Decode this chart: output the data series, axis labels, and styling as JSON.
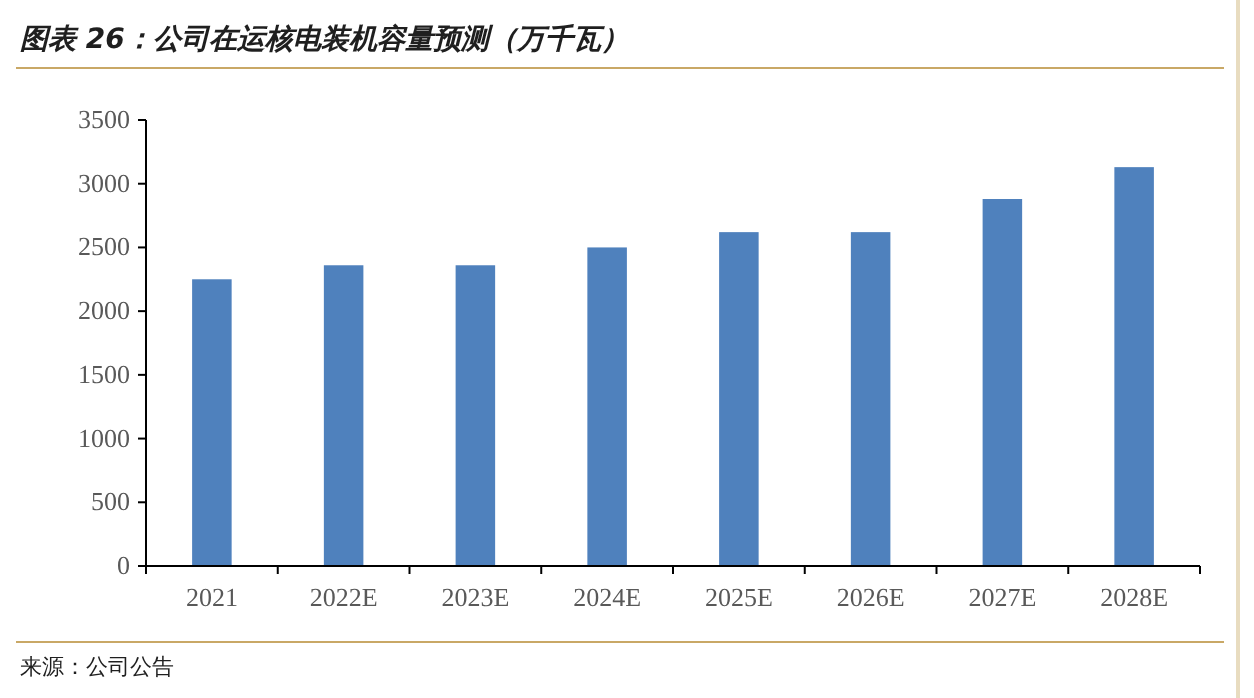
{
  "chart_data": {
    "type": "bar",
    "title": "图表 26：公司在运核电装机容量预测（万千瓦）",
    "categories": [
      "2021",
      "2022E",
      "2023E",
      "2024E",
      "2025E",
      "2026E",
      "2027E",
      "2028E"
    ],
    "values": [
      2250,
      2360,
      2360,
      2500,
      2620,
      2620,
      2880,
      3130
    ],
    "color": "#4f81bd",
    "ylim": [
      0,
      3500
    ],
    "yticks": [
      0,
      500,
      1000,
      1500,
      2000,
      2500,
      3000,
      3500
    ],
    "grid": false,
    "annotations": [
      "来源：公司公告"
    ]
  }
}
